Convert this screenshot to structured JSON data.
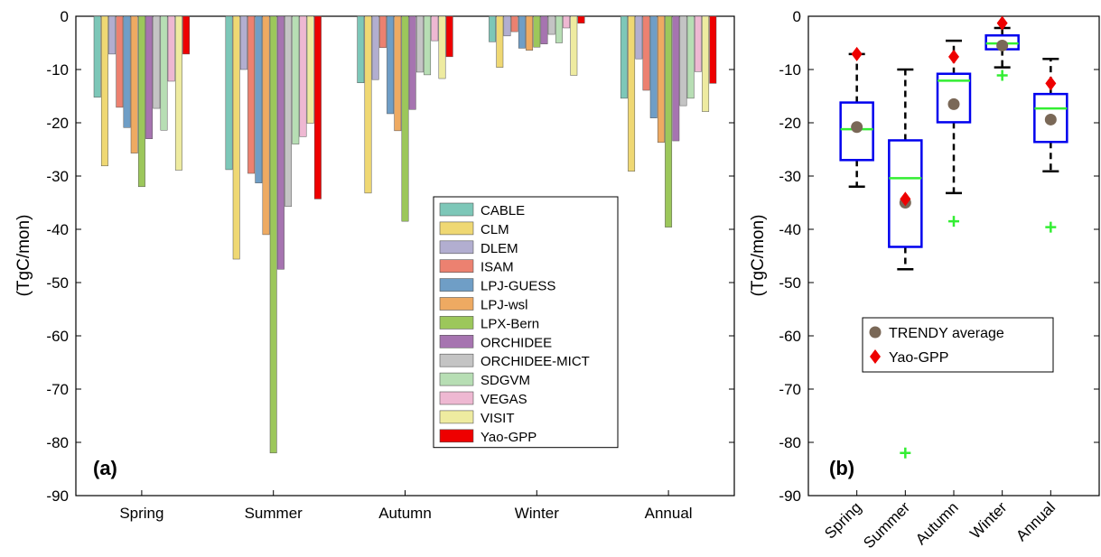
{
  "chart_data": [
    {
      "type": "bar",
      "panel_label": "(a)",
      "ylabel": "(TgC/mon)",
      "ylim": [
        -90,
        0
      ],
      "yticks": [
        0,
        -10,
        -20,
        -30,
        -40,
        -50,
        -60,
        -70,
        -80,
        -90
      ],
      "categories": [
        "Spring",
        "Summer",
        "Autumn",
        "Winter",
        "Annual"
      ],
      "legend_position": "inside, lower-right",
      "series": [
        {
          "name": "CABLE",
          "color": "#7dc7b8",
          "values": [
            -15.2,
            -28.8,
            -12.5,
            -4.8,
            -15.4
          ]
        },
        {
          "name": "CLM",
          "color": "#efd873",
          "values": [
            -28.1,
            -45.6,
            -33.2,
            -9.6,
            -29.1
          ]
        },
        {
          "name": "DLEM",
          "color": "#b2aed0",
          "values": [
            -7.1,
            -10.0,
            -11.9,
            -3.7,
            -8.0
          ]
        },
        {
          "name": "ISAM",
          "color": "#ec8170",
          "values": [
            -17.1,
            -29.5,
            -5.9,
            -2.9,
            -13.9
          ]
        },
        {
          "name": "LPJ-GUESS",
          "color": "#6f9ec6",
          "values": [
            -20.9,
            -31.3,
            -18.3,
            -6.0,
            -19.1
          ]
        },
        {
          "name": "LPJ-wsl",
          "color": "#eeaa62",
          "values": [
            -25.7,
            -41.0,
            -21.5,
            -6.4,
            -23.7
          ]
        },
        {
          "name": "LPX-Bern",
          "color": "#9cc75b",
          "values": [
            -32.0,
            -82.0,
            -38.5,
            -5.8,
            -39.6
          ]
        },
        {
          "name": "ORCHIDEE",
          "color": "#a674b0",
          "values": [
            -23.0,
            -47.5,
            -17.5,
            -5.2,
            -23.4
          ]
        },
        {
          "name": "ORCHIDEE-MICT",
          "color": "#c4c4c4",
          "values": [
            -17.3,
            -35.7,
            -10.5,
            -3.4,
            -16.8
          ]
        },
        {
          "name": "SDGVM",
          "color": "#b7deb4",
          "values": [
            -21.4,
            -24.0,
            -11.0,
            -5.0,
            -15.4
          ]
        },
        {
          "name": "VEGAS",
          "color": "#eeb8d2",
          "values": [
            -12.2,
            -22.6,
            -4.6,
            -2.2,
            -10.4
          ]
        },
        {
          "name": "VISIT",
          "color": "#eeeba0",
          "values": [
            -28.9,
            -20.1,
            -11.7,
            -11.1,
            -17.9
          ]
        },
        {
          "name": "Yao-GPP",
          "color": "#ee0000",
          "values": [
            -7.1,
            -34.3,
            -7.6,
            -1.3,
            -12.6
          ]
        }
      ]
    },
    {
      "type": "box",
      "panel_label": "(b)",
      "ylabel": "(TgC/mon)",
      "ylim": [
        -90,
        0
      ],
      "yticks": [
        0,
        -10,
        -20,
        -30,
        -40,
        -50,
        -60,
        -70,
        -80,
        -90
      ],
      "categories": [
        "Spring",
        "Summer",
        "Autumn",
        "Winter",
        "Annual"
      ],
      "legend_position": "middle-right",
      "legend": [
        {
          "name": "TRENDY average",
          "marker": "circle",
          "color": "#7a6857"
        },
        {
          "name": "Yao-GPP",
          "marker": "diamond",
          "color": "#ee0000"
        }
      ],
      "box_color": "#0000ee",
      "median_color": "#33ee33",
      "whisker_color": "#000000",
      "outlier_color": "#33ee33",
      "boxes": [
        {
          "whisker_low": -32.0,
          "q1": -27.0,
          "median": -21.2,
          "q3": -16.2,
          "whisker_high": -7.1,
          "mean": -20.8,
          "yao": -7.1,
          "outliers": []
        },
        {
          "whisker_low": -47.5,
          "q1": -43.3,
          "median": -30.4,
          "q3": -23.3,
          "whisker_high": -10.0,
          "mean": -35.0,
          "yao": -34.3,
          "outliers": [
            -82.0
          ]
        },
        {
          "whisker_low": -33.2,
          "q1": -19.9,
          "median": -12.1,
          "q3": -10.8,
          "whisker_high": -4.6,
          "mean": -16.5,
          "yao": -7.6,
          "outliers": [
            -38.5
          ]
        },
        {
          "whisker_low": -9.6,
          "q1": -6.2,
          "median": -5.1,
          "q3": -3.6,
          "whisker_high": -2.2,
          "mean": -5.5,
          "yao": -1.3,
          "outliers": [
            -11.1
          ]
        },
        {
          "whisker_low": -29.1,
          "q1": -23.6,
          "median": -17.3,
          "q3": -14.6,
          "whisker_high": -8.0,
          "mean": -19.4,
          "yao": -12.6,
          "outliers": [
            -39.6
          ]
        }
      ]
    }
  ]
}
